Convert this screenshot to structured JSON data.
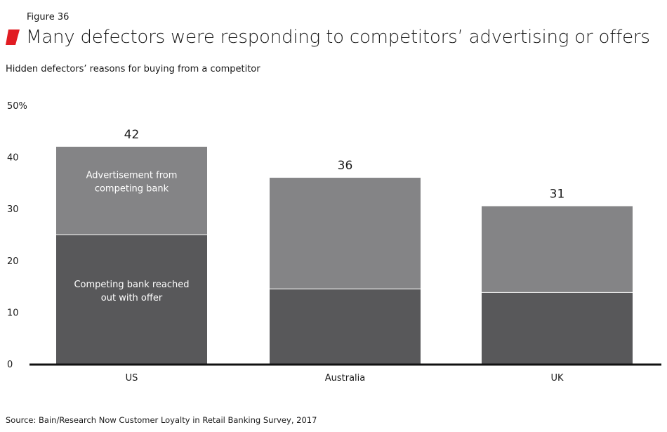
{
  "figure_label": "Figure 36",
  "title": "Many defectors were responding to competitors’ advertising or offers",
  "subtitle": "Hidden defectors’ reasons for buying from a competitor",
  "source": "Source: Bain/Research Now Customer Loyalty in Retail Banking Survey, 2017",
  "colors": {
    "accent": "#e11c22",
    "bottom_segment": "#58585a",
    "top_segment": "#848486",
    "axis": "#111111",
    "text": "#1a1a1a"
  },
  "chart_data": {
    "type": "bar",
    "stacked": true,
    "categories": [
      "US",
      "Australia",
      "UK"
    ],
    "series": [
      {
        "name": "Competing bank reached out with offer",
        "values": [
          25,
          14.5,
          13.8
        ]
      },
      {
        "name": "Advertisement from competing bank",
        "values": [
          17,
          21.5,
          16.7
        ]
      }
    ],
    "totals": [
      "42",
      "36",
      "31"
    ],
    "ylim": [
      0,
      50
    ],
    "yticks": [
      "0",
      "10",
      "20",
      "30",
      "40",
      "50%"
    ],
    "ytick_values": [
      0,
      10,
      20,
      30,
      40,
      50
    ],
    "segment_labels": {
      "bottom": [
        "Competing bank reached",
        "out with offer"
      ],
      "top": [
        "Advertisement from",
        "competing bank"
      ]
    }
  }
}
